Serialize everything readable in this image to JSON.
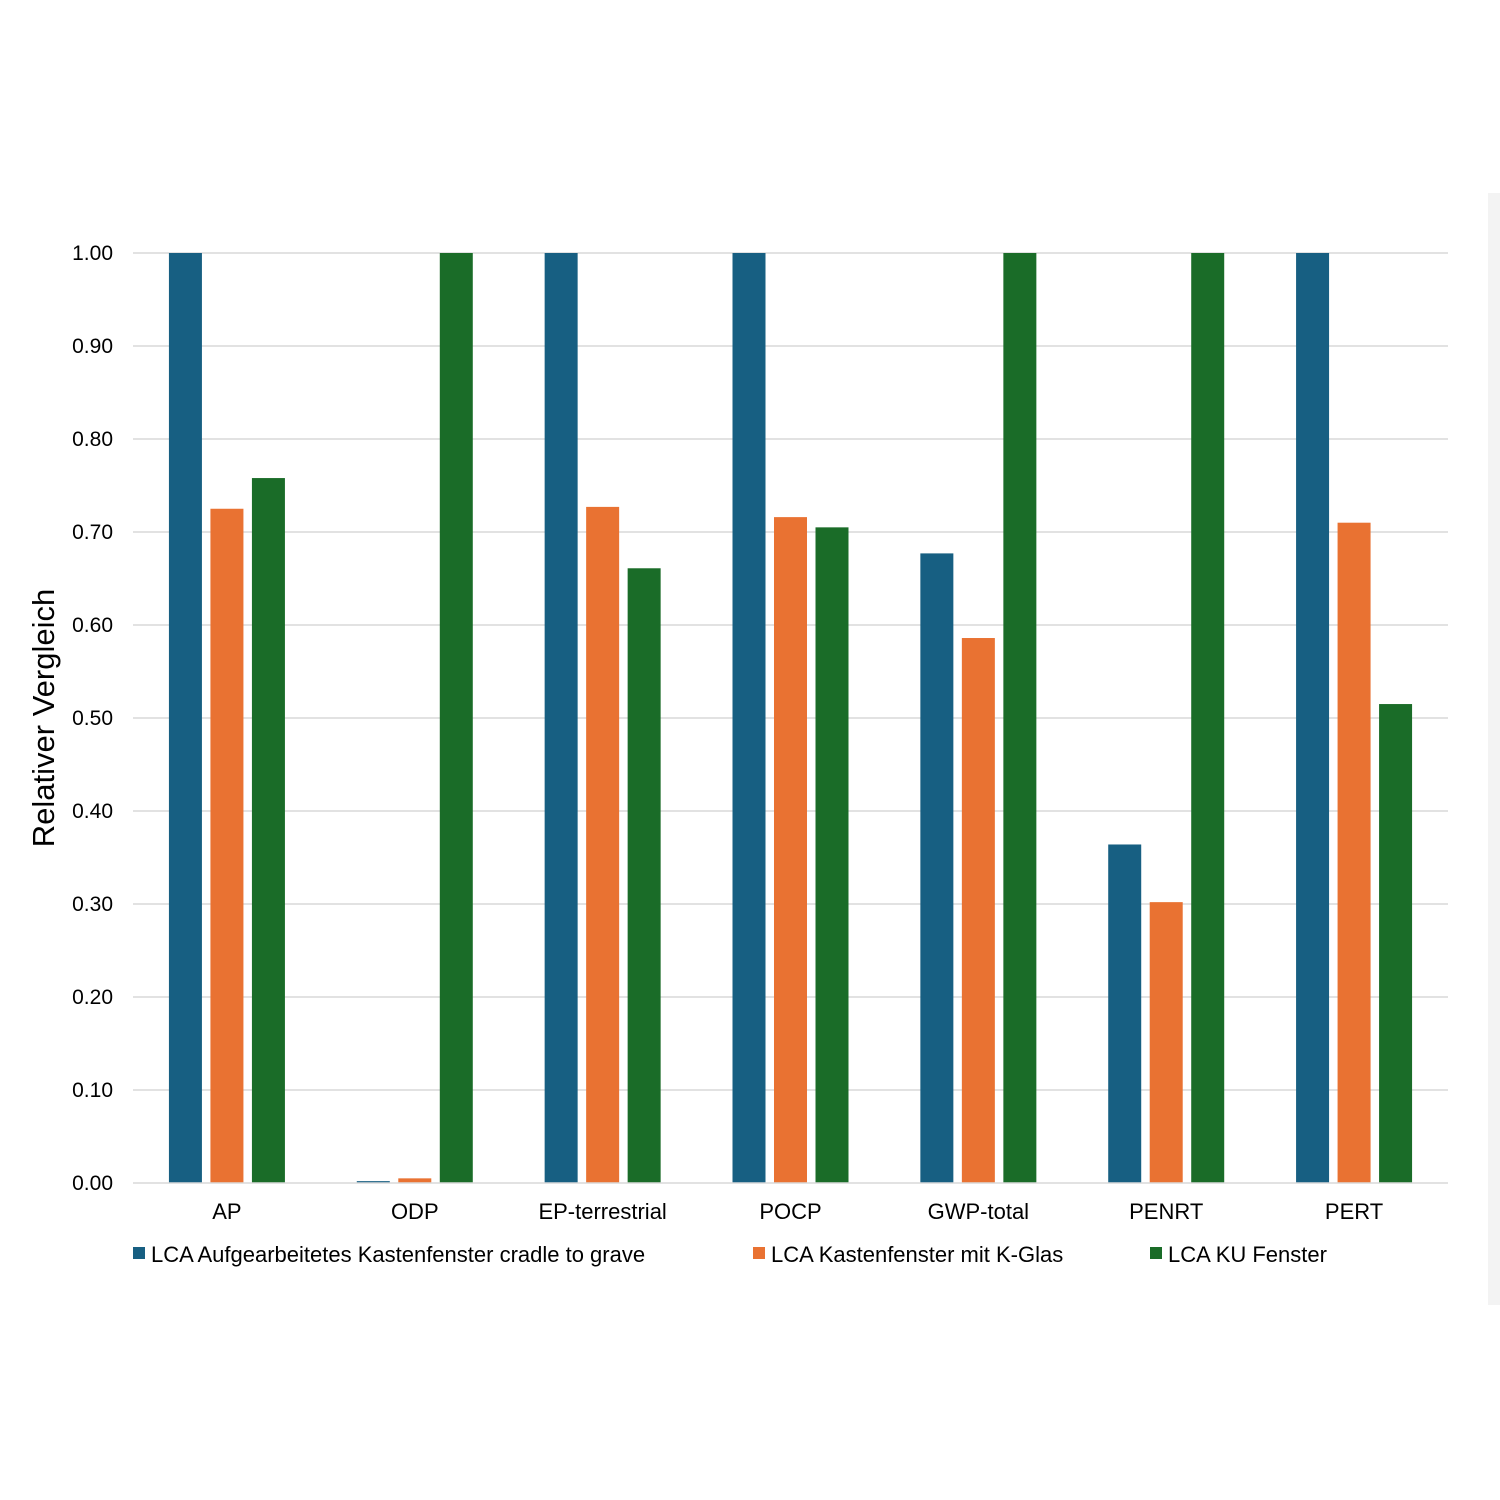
{
  "chart_data": {
    "type": "bar",
    "ylabel": "Relativer Vergleich",
    "xlabel": "",
    "ylim": [
      0,
      1
    ],
    "yticks": [
      "0.00",
      "0.10",
      "0.20",
      "0.30",
      "0.40",
      "0.50",
      "0.60",
      "0.70",
      "0.80",
      "0.90",
      "1.00"
    ],
    "grid": true,
    "legend": "bottom",
    "categories": [
      "AP",
      "ODP",
      "EP-terrestrial",
      "POCP",
      "GWP-total",
      "PENRT",
      "PERT"
    ],
    "series": [
      {
        "name": "LCA Aufgearbeitetes Kastenfenster cradle to grave",
        "color": "#175f82",
        "values": [
          1.0,
          0.002,
          1.0,
          1.0,
          0.677,
          0.364,
          1.0
        ]
      },
      {
        "name": "LCA Kastenfenster mit K-Glas",
        "color": "#e97232",
        "values": [
          0.725,
          0.005,
          0.727,
          0.716,
          0.586,
          0.302,
          0.71
        ]
      },
      {
        "name": "LCA KU Fenster",
        "color": "#1a6c28",
        "values": [
          0.758,
          1.0,
          0.661,
          0.705,
          1.0,
          1.0,
          0.515
        ]
      }
    ]
  }
}
